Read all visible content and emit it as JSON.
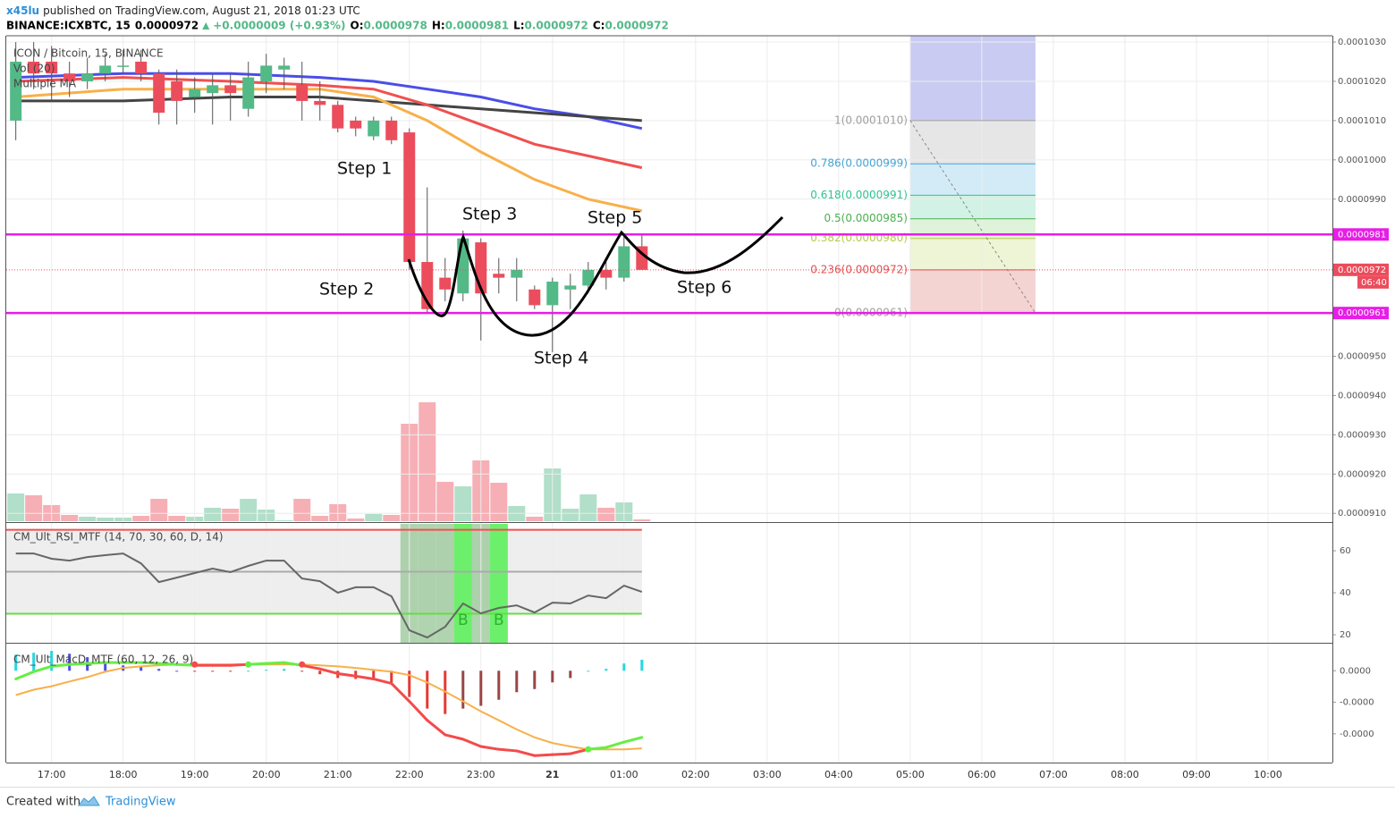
{
  "header": {
    "author": "x45lu",
    "published": "published on TradingView.com, August 21, 2018 01:23 UTC",
    "symbol": "BINANCE:ICXBTC, 15",
    "last": "0.0000972",
    "change": "+0.0000009 (+0.93%)",
    "ohlc": [
      {
        "label": "O:",
        "value": "0.0000978"
      },
      {
        "label": "H:",
        "value": "0.0000981"
      },
      {
        "label": "L:",
        "value": "0.0000972"
      },
      {
        "label": "C:",
        "value": "0.0000972"
      }
    ]
  },
  "chart_data": [
    {
      "type": "candlestick",
      "legend": [
        "ICON / Bitcoin, 15, BINANCE",
        "Vol (20)",
        "Multiple MA"
      ],
      "x": [
        "16:30",
        "16:45",
        "17:00",
        "17:15",
        "17:30",
        "17:45",
        "18:00",
        "18:15",
        "18:30",
        "18:45",
        "19:00",
        "19:15",
        "19:30",
        "19:45",
        "20:00",
        "20:15",
        "20:30",
        "20:45",
        "21:00",
        "21:15",
        "21:30",
        "21:45",
        "22:00",
        "22:15",
        "22:30",
        "22:45",
        "23:00",
        "23:15",
        "23:30",
        "23:45",
        "00:00",
        "00:15",
        "00:30",
        "00:45",
        "01:00",
        "01:15"
      ],
      "open": [
        0.000101,
        0.0001025,
        0.0001025,
        0.0001022,
        0.000102,
        0.0001022,
        0.0001024,
        0.0001025,
        0.0001022,
        0.000102,
        0.0001016,
        0.0001017,
        0.0001019,
        0.0001013,
        0.000102,
        0.0001023,
        0.0001019,
        0.0001015,
        0.0001014,
        0.000101,
        0.0001006,
        0.000101,
        0.0001007,
        9.74e-05,
        9.7e-05,
        9.66e-05,
        9.79e-05,
        9.71e-05,
        9.7e-05,
        9.67e-05,
        9.63e-05,
        9.67e-05,
        9.68e-05,
        9.72e-05,
        9.7e-05,
        9.78e-05
      ],
      "high": [
        0.000103,
        0.000103,
        0.0001029,
        0.0001025,
        0.0001026,
        0.0001027,
        0.0001028,
        0.0001028,
        0.0001023,
        0.0001023,
        0.0001021,
        0.0001022,
        0.0001022,
        0.0001025,
        0.0001027,
        0.0001026,
        0.0001025,
        0.000102,
        0.0001015,
        0.0001011,
        0.0001011,
        0.0001011,
        0.0001008,
        9.93e-05,
        9.75e-05,
        9.82e-05,
        9.8e-05,
        9.75e-05,
        9.75e-05,
        9.68e-05,
        9.7e-05,
        9.71e-05,
        9.74e-05,
        9.74e-05,
        9.81e-05,
        9.81e-05
      ],
      "low": [
        0.0001005,
        0.0001018,
        0.0001015,
        0.0001016,
        0.0001018,
        0.000102,
        0.0001022,
        0.000102,
        0.0001009,
        0.0001009,
        0.0001012,
        0.0001009,
        0.000101,
        0.0001011,
        0.0001017,
        0.0001018,
        0.000101,
        0.000101,
        0.0001007,
        0.0001006,
        0.0001005,
        0.0001004,
        9.72e-05,
        9.61e-05,
        9.64e-05,
        9.64e-05,
        9.54e-05,
        9.66e-05,
        9.64e-05,
        9.62e-05,
        9.51e-05,
        9.62e-05,
        9.66e-05,
        9.67e-05,
        9.69e-05,
        9.72e-05
      ],
      "close": [
        0.0001025,
        0.0001022,
        0.0001022,
        0.000102,
        0.0001022,
        0.0001024,
        0.0001024,
        0.0001022,
        0.0001012,
        0.0001015,
        0.0001018,
        0.0001019,
        0.0001017,
        0.0001021,
        0.0001024,
        0.0001024,
        0.0001015,
        0.0001014,
        0.0001008,
        0.0001008,
        0.000101,
        0.0001005,
        9.74e-05,
        9.62e-05,
        9.67e-05,
        9.8e-05,
        9.66e-05,
        9.7e-05,
        9.72e-05,
        9.63e-05,
        9.69e-05,
        9.68e-05,
        9.72e-05,
        9.7e-05,
        9.78e-05,
        9.72e-05
      ],
      "volume": [
        31,
        29,
        18,
        7,
        5,
        4,
        4,
        6,
        25,
        6,
        5,
        15,
        14,
        25,
        13,
        1,
        25,
        6,
        19,
        3,
        8,
        7,
        109,
        133,
        44,
        39,
        68,
        43,
        17,
        5,
        59,
        14,
        30,
        15,
        21,
        2
      ],
      "up_color": "#53b987",
      "down_color": "#eb4d5c",
      "ma": [
        {
          "color": "#4a4ee8",
          "x": [
            "16:30",
            "18:00",
            "19:30",
            "20:45",
            "21:30",
            "22:15",
            "23:00",
            "23:45",
            "00:30",
            "01:15"
          ],
          "values": [
            0.0001021,
            0.0001022,
            0.0001022,
            0.0001021,
            0.000102,
            0.0001018,
            0.0001016,
            0.0001013,
            0.0001011,
            0.0001008
          ]
        },
        {
          "color": "#444444",
          "x": [
            "16:30",
            "18:00",
            "19:30",
            "20:45",
            "21:30",
            "22:15",
            "23:00",
            "23:45",
            "00:30",
            "01:15"
          ],
          "values": [
            0.0001015,
            0.0001015,
            0.0001016,
            0.0001016,
            0.0001015,
            0.0001014,
            0.0001013,
            0.0001012,
            0.0001011,
            0.000101
          ]
        },
        {
          "color": "#f0504f",
          "x": [
            "16:30",
            "18:00",
            "19:30",
            "20:45",
            "21:30",
            "22:15",
            "23:00",
            "23:45",
            "00:30",
            "01:15"
          ],
          "values": [
            0.000102,
            0.0001021,
            0.000102,
            0.0001019,
            0.0001018,
            0.0001014,
            0.0001009,
            0.0001004,
            0.0001001,
            9.98e-05
          ]
        },
        {
          "color": "#f8b04a",
          "x": [
            "16:30",
            "18:00",
            "19:30",
            "20:45",
            "21:30",
            "22:15",
            "23:00",
            "23:45",
            "00:30",
            "01:15"
          ],
          "values": [
            0.0001016,
            0.0001018,
            0.0001018,
            0.0001018,
            0.0001016,
            0.000101,
            0.0001002,
            9.95e-05,
            9.9e-05,
            9.87e-05
          ]
        }
      ],
      "xlim": [
        "16:22",
        "10:54"
      ],
      "xticks": [
        "17:00",
        "18:00",
        "19:00",
        "20:00",
        "21:00",
        "22:00",
        "23:00",
        {
          "value": "00:00",
          "label": "21"
        },
        "01:00",
        "02:00",
        "03:00",
        "04:00",
        "05:00",
        "06:00",
        "07:00",
        "08:00",
        "09:00",
        "10:00"
      ],
      "ylim": [
        9.08e-05,
        0.00010316
      ],
      "yticks": [
        {
          "value": 0.000103,
          "label": "0.0001030"
        },
        {
          "value": 0.000102,
          "label": "0.0001020"
        },
        {
          "value": 0.000101,
          "label": "0.0001010"
        },
        {
          "value": 0.0001,
          "label": "0.0001000"
        },
        {
          "value": 9.9e-05,
          "label": "0.0000990"
        },
        {
          "value": 9.5e-05,
          "label": "0.0000950"
        },
        {
          "value": 9.4e-05,
          "label": "0.0000940"
        },
        {
          "value": 9.3e-05,
          "label": "0.0000930"
        },
        {
          "value": 9.2e-05,
          "label": "0.0000920"
        },
        {
          "value": 9.1e-05,
          "label": "0.0000910"
        }
      ],
      "grid": true,
      "price_lines": [
        {
          "value": 9.81e-05,
          "label": "0.0000981",
          "color": "#e61ee6"
        },
        {
          "value": 9.61e-05,
          "label": "0.0000961",
          "color": "#e61ee6"
        }
      ],
      "last_price": {
        "value": 9.72e-05,
        "label": "0.0000972",
        "countdown": "06:40",
        "color": "#eb4d5c"
      },
      "fib": {
        "x": [
          "05:00",
          "06:45"
        ],
        "box_color": "#c9cbf2",
        "levels": [
          {
            "value": 0.000101,
            "label": "1(0.0001010)",
            "color": "#9e9e9e",
            "fill": "#e6e6e6"
          },
          {
            "value": 9.99e-05,
            "label": "0.786(0.0000999)",
            "color": "#42a5d8",
            "fill": "#d3ebf7"
          },
          {
            "value": 9.91e-05,
            "label": "0.618(0.0000991)",
            "color": "#2ec48f",
            "fill": "#d1f2e4"
          },
          {
            "value": 9.85e-05,
            "label": "0.5(0.0000985)",
            "color": "#4caf50",
            "fill": "#def3d9"
          },
          {
            "value": 9.8e-05,
            "label": "0.382(0.0000980)",
            "color": "#b5c94a",
            "fill": "#eef4d6"
          },
          {
            "value": 9.72e-05,
            "label": "0.236(0.0000972)",
            "color": "#e05050",
            "fill": "#f4d3d3"
          },
          {
            "value": 9.61e-05,
            "label": "0(0.0000961)",
            "color": "#9e9e9e"
          }
        ]
      },
      "annotations": [
        "Step 1",
        "Step 2",
        "Step 3",
        "Step 4",
        "Step 5",
        "Step 6"
      ]
    },
    {
      "type": "line",
      "title": "CM_Ult_RSI_MTF (14, 70, 30, 60, D, 14)",
      "values": [
        58.7,
        58.7,
        56.2,
        55.3,
        57,
        57.9,
        58.7,
        54,
        45.1,
        47.2,
        49.4,
        51.5,
        49.8,
        52.8,
        55.3,
        55.3,
        46.8,
        45.5,
        40,
        42.6,
        42.6,
        38.3,
        22.1,
        18.7,
        23.8,
        34.9,
        30.2,
        32.8,
        34,
        30.6,
        35.3,
        34.9,
        38.7,
        37.4,
        43.4,
        40.4
      ],
      "color": "#666666",
      "ylim": [
        16.6,
        72.8
      ],
      "yticks": [
        20,
        40,
        60
      ],
      "levels": [
        {
          "value": 70,
          "color": "#f05050"
        },
        {
          "value": 50,
          "color": "#aaaaaa"
        },
        {
          "value": 30,
          "color": "#66dd44"
        }
      ],
      "oversold": [
        "22:00",
        "22:15",
        "22:30",
        "22:45",
        "23:00",
        "23:15"
      ],
      "oversold_color": "#9cc99c",
      "signals": [
        {
          "x": "22:45",
          "label": "B"
        },
        {
          "x": "23:15",
          "label": "B"
        }
      ],
      "signal_color": "#6cf06c"
    },
    {
      "type": "macd",
      "title": "CM_Ult_MacD_MTF (60, 12, 26, 9)",
      "macd": [
        -2.6e-08,
        -3e-09,
        1.4e-08,
        2e-08,
        2.3e-08,
        2.6e-08,
        2.6e-08,
        2.6e-08,
        2.3e-08,
        2e-08,
        1.7e-08,
        1.7e-08,
        1.7e-08,
        2e-08,
        2.3e-08,
        2.6e-08,
        1.7e-08,
        6e-09,
        -9e-09,
        -1.7e-08,
        -2.6e-08,
        -4e-08,
        -9.7e-08,
        -1.57e-07,
        -2.03e-07,
        -2.17e-07,
        -2.4e-07,
        -2.49e-07,
        -2.54e-07,
        -2.69e-07,
        -2.66e-07,
        -2.63e-07,
        -2.49e-07,
        -2.43e-07,
        -2.26e-07,
        -2.11e-07
      ],
      "signal": [
        -7.7e-08,
        -6e-08,
        -4.9e-08,
        -3.4e-08,
        -2e-08,
        -3e-09,
        9e-09,
        1.4e-08,
        1.7e-08,
        2e-08,
        2e-08,
        2e-08,
        2e-08,
        2e-08,
        2e-08,
        2e-08,
        2e-08,
        1.7e-08,
        1.4e-08,
        9e-09,
        3e-09,
        -3e-09,
        -1.4e-08,
        -3.7e-08,
        -6.6e-08,
        -9.7e-08,
        -1.29e-07,
        -1.57e-07,
        -1.86e-07,
        -2.11e-07,
        -2.29e-07,
        -2.4e-07,
        -2.49e-07,
        -2.49e-07,
        -2.49e-07,
        -2.46e-07
      ],
      "histogram": [
        5.1e-08,
        5.7e-08,
        6.3e-08,
        5.4e-08,
        4.3e-08,
        2.9e-08,
        1.7e-08,
        1.2e-08,
        6e-09,
        0,
        -3e-09,
        -3e-09,
        -3e-09,
        0,
        3e-09,
        6e-09,
        -3e-09,
        -1.1e-08,
        -2.3e-08,
        -2.6e-08,
        -2.9e-08,
        -3.7e-08,
        -8.3e-08,
        -1.2e-07,
        -1.37e-07,
        -1.2e-07,
        -1.11e-07,
        -9.2e-08,
        -6.8e-08,
        -5.8e-08,
        -3.7e-08,
        -2.3e-08,
        0,
        6e-09,
        2.3e-08,
        3.5e-08
      ],
      "ylim": [
        -2.91e-07,
        8.3e-08
      ],
      "yticks": [
        {
          "value": 0,
          "label": "0.0000"
        },
        {
          "value": -1e-07,
          "label": "-0.0000"
        },
        {
          "value": -2e-07,
          "label": "-0.0000"
        }
      ],
      "colors": {
        "up": "#66ee44",
        "down": "#f44a4a",
        "signal": "#f8b04a"
      },
      "hist_colors": [
        "#26d7e0",
        "#4a4ee8",
        "#e53935",
        "#9b4545"
      ]
    }
  ],
  "footer": {
    "created": "Created with",
    "brand": "TradingView"
  }
}
